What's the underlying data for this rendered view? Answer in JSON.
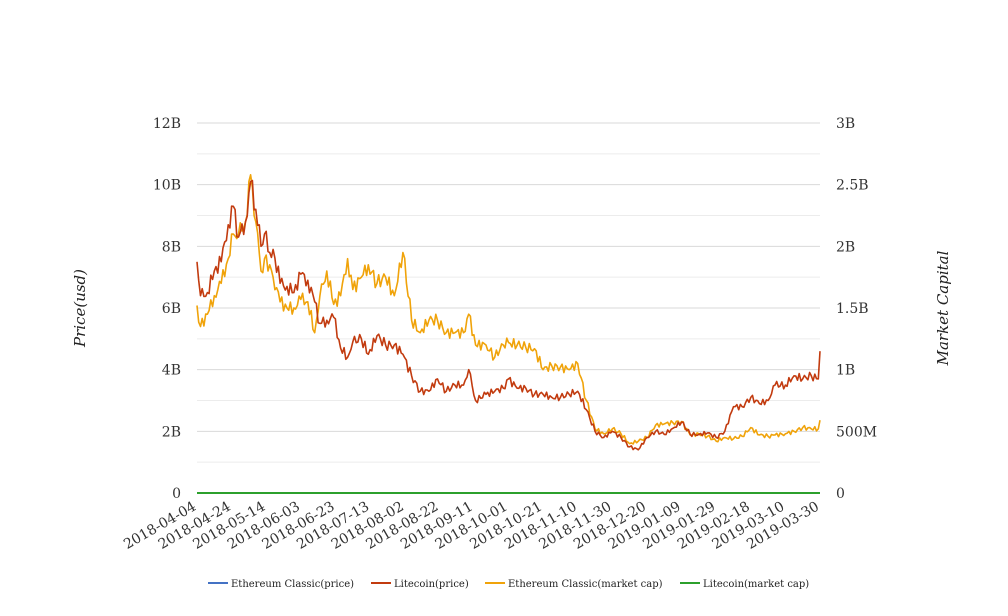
{
  "chart_data": {
    "type": "line",
    "ylabel": "Price(usd)",
    "y2label": "Market Capital",
    "left_axis": {
      "ticks": [
        "0",
        "2B",
        "4B",
        "6B",
        "8B",
        "10B",
        "12B"
      ],
      "ylim": [
        0,
        12000000000
      ]
    },
    "right_axis": {
      "ticks": [
        "0",
        "500M",
        "1B",
        "1.5B",
        "2B",
        "2.5B",
        "3B"
      ],
      "ylim": [
        0,
        3000000000
      ]
    },
    "x_tick_labels": [
      "2018-04-04",
      "2018-04-24",
      "2018-05-14",
      "2018-06-03",
      "2018-06-23",
      "2018-07-13",
      "2018-08-02",
      "2018-08-22",
      "2018-09-11",
      "2018-10-01",
      "2018-10-21",
      "2018-11-10",
      "2018-11-30",
      "2018-12-20",
      "2019-01-09",
      "2019-01-29",
      "2019-02-18",
      "2019-03-10",
      "2019-03-30"
    ],
    "x_range": [
      "2018-04-04",
      "2019-03-30"
    ],
    "grid": true,
    "legend_position": "bottom",
    "series": [
      {
        "name": "Ethereum Classic(price)",
        "axis": "left",
        "color": "#4472c4",
        "points": [
          [
            "2018-04-04",
            0
          ],
          [
            "2019-03-30",
            0
          ]
        ]
      },
      {
        "name": "Litecoin(price)",
        "axis": "left",
        "color": "#c23b0f",
        "points": [
          [
            "2018-04-04",
            7500000000
          ],
          [
            "2018-04-06",
            6400000000
          ],
          [
            "2018-04-10",
            6500000000
          ],
          [
            "2018-04-14",
            7200000000
          ],
          [
            "2018-04-18",
            7500000000
          ],
          [
            "2018-04-22",
            8700000000
          ],
          [
            "2018-04-25",
            9300000000
          ],
          [
            "2018-04-28",
            8300000000
          ],
          [
            "2018-05-02",
            8800000000
          ],
          [
            "2018-05-05",
            10100000000
          ],
          [
            "2018-05-08",
            9200000000
          ],
          [
            "2018-05-11",
            8000000000
          ],
          [
            "2018-05-13",
            8400000000
          ],
          [
            "2018-05-16",
            7800000000
          ],
          [
            "2018-05-18",
            7900000000
          ],
          [
            "2018-05-22",
            6800000000
          ],
          [
            "2018-05-26",
            6700000000
          ],
          [
            "2018-05-30",
            6500000000
          ],
          [
            "2018-06-03",
            7100000000
          ],
          [
            "2018-06-07",
            6900000000
          ],
          [
            "2018-06-11",
            6200000000
          ],
          [
            "2018-06-14",
            5500000000
          ],
          [
            "2018-06-18",
            5600000000
          ],
          [
            "2018-06-22",
            5700000000
          ],
          [
            "2018-06-26",
            4700000000
          ],
          [
            "2018-06-30",
            4400000000
          ],
          [
            "2018-07-03",
            4900000000
          ],
          [
            "2018-07-08",
            5000000000
          ],
          [
            "2018-07-12",
            4500000000
          ],
          [
            "2018-07-17",
            5100000000
          ],
          [
            "2018-07-22",
            4800000000
          ],
          [
            "2018-07-27",
            4800000000
          ],
          [
            "2018-08-01",
            4500000000
          ],
          [
            "2018-08-06",
            3800000000
          ],
          [
            "2018-08-11",
            3300000000
          ],
          [
            "2018-08-16",
            3300000000
          ],
          [
            "2018-08-21",
            3700000000
          ],
          [
            "2018-08-26",
            3300000000
          ],
          [
            "2018-08-31",
            3500000000
          ],
          [
            "2018-09-05",
            3500000000
          ],
          [
            "2018-09-08",
            4000000000
          ],
          [
            "2018-09-12",
            3000000000
          ],
          [
            "2018-09-18",
            3200000000
          ],
          [
            "2018-09-23",
            3300000000
          ],
          [
            "2018-09-28",
            3400000000
          ],
          [
            "2018-10-01",
            3700000000
          ],
          [
            "2018-10-06",
            3400000000
          ],
          [
            "2018-10-11",
            3400000000
          ],
          [
            "2018-10-16",
            3200000000
          ],
          [
            "2018-10-21",
            3200000000
          ],
          [
            "2018-10-26",
            3100000000
          ],
          [
            "2018-10-31",
            3100000000
          ],
          [
            "2018-11-05",
            3200000000
          ],
          [
            "2018-11-10",
            3300000000
          ],
          [
            "2018-11-15",
            2700000000
          ],
          [
            "2018-11-20",
            2000000000
          ],
          [
            "2018-11-25",
            1800000000
          ],
          [
            "2018-11-30",
            2000000000
          ],
          [
            "2018-12-05",
            1800000000
          ],
          [
            "2018-12-10",
            1500000000
          ],
          [
            "2018-12-15",
            1400000000
          ],
          [
            "2018-12-20",
            1800000000
          ],
          [
            "2018-12-25",
            2000000000
          ],
          [
            "2018-12-30",
            1900000000
          ],
          [
            "2019-01-04",
            2100000000
          ],
          [
            "2019-01-09",
            2300000000
          ],
          [
            "2019-01-14",
            1900000000
          ],
          [
            "2019-01-19",
            1900000000
          ],
          [
            "2019-01-24",
            1950000000
          ],
          [
            "2019-01-29",
            1800000000
          ],
          [
            "2019-02-03",
            2000000000
          ],
          [
            "2019-02-08",
            2800000000
          ],
          [
            "2019-02-13",
            2800000000
          ],
          [
            "2019-02-18",
            3100000000
          ],
          [
            "2019-02-23",
            2900000000
          ],
          [
            "2019-02-28",
            3000000000
          ],
          [
            "2019-03-04",
            3500000000
          ],
          [
            "2019-03-10",
            3500000000
          ],
          [
            "2019-03-15",
            3800000000
          ],
          [
            "2019-03-20",
            3700000000
          ],
          [
            "2019-03-25",
            3800000000
          ],
          [
            "2019-03-29",
            3700000000
          ],
          [
            "2019-03-30",
            4600000000
          ]
        ]
      },
      {
        "name": "Ethereum Classic(market cap)",
        "axis": "right",
        "color": "#f0a30a",
        "points": [
          [
            "2018-04-04",
            1520000000
          ],
          [
            "2018-04-06",
            1350000000
          ],
          [
            "2018-04-10",
            1450000000
          ],
          [
            "2018-04-14",
            1600000000
          ],
          [
            "2018-04-18",
            1700000000
          ],
          [
            "2018-04-22",
            1900000000
          ],
          [
            "2018-04-25",
            2100000000
          ],
          [
            "2018-04-28",
            2100000000
          ],
          [
            "2018-05-02",
            2200000000
          ],
          [
            "2018-05-05",
            2580000000
          ],
          [
            "2018-05-08",
            2200000000
          ],
          [
            "2018-05-11",
            1800000000
          ],
          [
            "2018-05-13",
            1900000000
          ],
          [
            "2018-05-16",
            1850000000
          ],
          [
            "2018-05-18",
            1750000000
          ],
          [
            "2018-05-22",
            1550000000
          ],
          [
            "2018-05-26",
            1500000000
          ],
          [
            "2018-05-30",
            1500000000
          ],
          [
            "2018-06-03",
            1570000000
          ],
          [
            "2018-06-07",
            1550000000
          ],
          [
            "2018-06-11",
            1300000000
          ],
          [
            "2018-06-14",
            1600000000
          ],
          [
            "2018-06-18",
            1800000000
          ],
          [
            "2018-06-22",
            1530000000
          ],
          [
            "2018-06-26",
            1600000000
          ],
          [
            "2018-06-30",
            1900000000
          ],
          [
            "2018-07-03",
            1650000000
          ],
          [
            "2018-07-08",
            1750000000
          ],
          [
            "2018-07-12",
            1850000000
          ],
          [
            "2018-07-17",
            1700000000
          ],
          [
            "2018-07-22",
            1750000000
          ],
          [
            "2018-07-27",
            1600000000
          ],
          [
            "2018-08-01",
            1950000000
          ],
          [
            "2018-08-06",
            1400000000
          ],
          [
            "2018-08-11",
            1300000000
          ],
          [
            "2018-08-16",
            1400000000
          ],
          [
            "2018-08-21",
            1400000000
          ],
          [
            "2018-08-26",
            1300000000
          ],
          [
            "2018-08-31",
            1300000000
          ],
          [
            "2018-09-05",
            1300000000
          ],
          [
            "2018-09-08",
            1450000000
          ],
          [
            "2018-09-12",
            1200000000
          ],
          [
            "2018-09-18",
            1200000000
          ],
          [
            "2018-09-23",
            1100000000
          ],
          [
            "2018-09-28",
            1200000000
          ],
          [
            "2018-10-01",
            1220000000
          ],
          [
            "2018-10-06",
            1200000000
          ],
          [
            "2018-10-11",
            1180000000
          ],
          [
            "2018-10-16",
            1170000000
          ],
          [
            "2018-10-21",
            1000000000
          ],
          [
            "2018-10-26",
            1030000000
          ],
          [
            "2018-10-31",
            1020000000
          ],
          [
            "2018-11-05",
            1000000000
          ],
          [
            "2018-11-10",
            1050000000
          ],
          [
            "2018-11-15",
            750000000
          ],
          [
            "2018-11-20",
            520000000
          ],
          [
            "2018-11-25",
            480000000
          ],
          [
            "2018-11-30",
            520000000
          ],
          [
            "2018-12-05",
            480000000
          ],
          [
            "2018-12-10",
            400000000
          ],
          [
            "2018-12-15",
            420000000
          ],
          [
            "2018-12-20",
            450000000
          ],
          [
            "2018-12-25",
            550000000
          ],
          [
            "2018-12-30",
            560000000
          ],
          [
            "2019-01-04",
            570000000
          ],
          [
            "2019-01-09",
            580000000
          ],
          [
            "2019-01-14",
            470000000
          ],
          [
            "2019-01-19",
            480000000
          ],
          [
            "2019-01-24",
            460000000
          ],
          [
            "2019-01-29",
            420000000
          ],
          [
            "2019-02-03",
            450000000
          ],
          [
            "2019-02-08",
            440000000
          ],
          [
            "2019-02-13",
            460000000
          ],
          [
            "2019-02-18",
            530000000
          ],
          [
            "2019-02-23",
            470000000
          ],
          [
            "2019-02-28",
            460000000
          ],
          [
            "2019-03-04",
            470000000
          ],
          [
            "2019-03-10",
            480000000
          ],
          [
            "2019-03-15",
            500000000
          ],
          [
            "2019-03-20",
            530000000
          ],
          [
            "2019-03-25",
            520000000
          ],
          [
            "2019-03-29",
            520000000
          ],
          [
            "2019-03-30",
            590000000
          ]
        ]
      },
      {
        "name": "Litecoin(market cap)",
        "axis": "right",
        "color": "#2ca02c",
        "points": [
          [
            "2018-04-04",
            0
          ],
          [
            "2019-03-30",
            0
          ]
        ]
      }
    ]
  }
}
